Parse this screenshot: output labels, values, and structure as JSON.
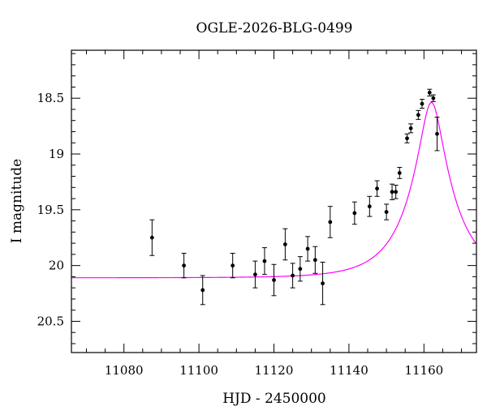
{
  "chart_data": {
    "type": "scatter",
    "title": "OGLE-2026-BLG-0499",
    "xlabel": "HJD - 2450000",
    "ylabel": "I magnitude",
    "xlim": [
      11066,
      11174
    ],
    "ylim": [
      20.78,
      18.07
    ],
    "y_inverted": true,
    "grid": false,
    "x_ticks": [
      "11080",
      "11100",
      "11120",
      "11140",
      "11160"
    ],
    "y_ticks": [
      "18.5",
      "19",
      "19.5",
      "20",
      "20.5"
    ],
    "series": [
      {
        "kind": "points_with_errorbars",
        "color": "#000000",
        "points": [
          {
            "x": 11087.5,
            "y": 19.75,
            "err": 0.16
          },
          {
            "x": 11096.0,
            "y": 20.0,
            "err": 0.11
          },
          {
            "x": 11101.0,
            "y": 20.22,
            "err": 0.13
          },
          {
            "x": 11109.0,
            "y": 20.0,
            "err": 0.11
          },
          {
            "x": 11115.0,
            "y": 20.08,
            "err": 0.12
          },
          {
            "x": 11117.5,
            "y": 19.96,
            "err": 0.12
          },
          {
            "x": 11120.0,
            "y": 20.13,
            "err": 0.14
          },
          {
            "x": 11123.0,
            "y": 19.81,
            "err": 0.14
          },
          {
            "x": 11125.0,
            "y": 20.09,
            "err": 0.11
          },
          {
            "x": 11127.0,
            "y": 20.03,
            "err": 0.11
          },
          {
            "x": 11129.0,
            "y": 19.85,
            "err": 0.11
          },
          {
            "x": 11131.0,
            "y": 19.95,
            "err": 0.12
          },
          {
            "x": 11133.0,
            "y": 20.16,
            "err": 0.19
          },
          {
            "x": 11135.0,
            "y": 19.61,
            "err": 0.14
          },
          {
            "x": 11141.5,
            "y": 19.53,
            "err": 0.1
          },
          {
            "x": 11145.5,
            "y": 19.47,
            "err": 0.09
          },
          {
            "x": 11147.5,
            "y": 19.31,
            "err": 0.07
          },
          {
            "x": 11150.0,
            "y": 19.52,
            "err": 0.07
          },
          {
            "x": 11151.5,
            "y": 19.34,
            "err": 0.07
          },
          {
            "x": 11152.5,
            "y": 19.34,
            "err": 0.06
          },
          {
            "x": 11153.5,
            "y": 19.17,
            "err": 0.05
          },
          {
            "x": 11155.5,
            "y": 18.86,
            "err": 0.04
          },
          {
            "x": 11156.5,
            "y": 18.77,
            "err": 0.04
          },
          {
            "x": 11158.5,
            "y": 18.65,
            "err": 0.04
          },
          {
            "x": 11159.5,
            "y": 18.55,
            "err": 0.04
          },
          {
            "x": 11161.5,
            "y": 18.45,
            "err": 0.03
          },
          {
            "x": 11162.5,
            "y": 18.5,
            "err": 0.03
          },
          {
            "x": 11163.5,
            "y": 18.82,
            "err": 0.15
          }
        ]
      },
      {
        "kind": "model_curve",
        "color": "#ff00ff",
        "model": {
          "type": "paczynski",
          "t0": 11162,
          "tE": 12,
          "u0": 0.24,
          "i_base": 20.11
        }
      }
    ]
  }
}
